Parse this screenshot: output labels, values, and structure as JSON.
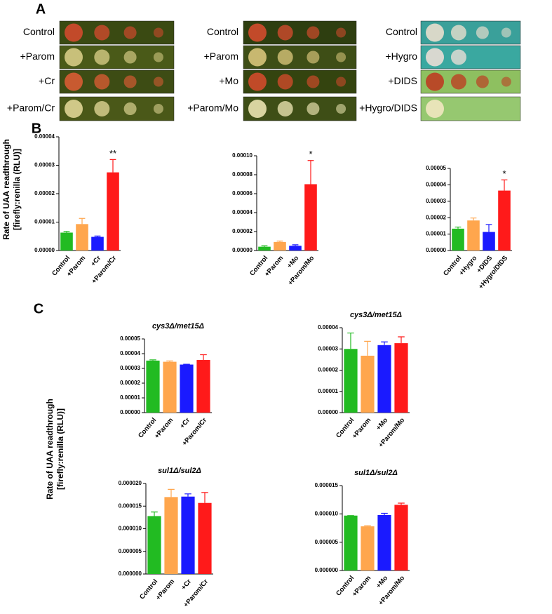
{
  "panel_labels": {
    "a": "A",
    "b": "B",
    "c": "C"
  },
  "plates": [
    {
      "rows": [
        "Control",
        "+Parom",
        "+Cr",
        "+Parom/Cr"
      ]
    },
    {
      "rows": [
        "Control",
        "+Parom",
        "+Mo",
        "+Parom/Mo"
      ]
    },
    {
      "rows": [
        "Control",
        "+Hygro",
        "+DIDS",
        "+Hygro/DIDS"
      ]
    }
  ],
  "ylabel": [
    "Rate of UAA readthrough",
    "[firefly:renilla (RLU)]"
  ],
  "chart_data": [
    {
      "type": "bar",
      "categories": [
        "Control",
        "+Parom",
        "+Cr",
        "+Parom/Cr"
      ],
      "colors": [
        "#22bb22",
        "#ffa64d",
        "#1a1aff",
        "#ff1a1a"
      ],
      "values": [
        6.3e-06,
        9.3e-06,
        4.8e-06,
        2.75e-05
      ],
      "errors": [
        4e-07,
        2e-06,
        3e-07,
        4.5e-06
      ],
      "annotations": [
        null,
        null,
        null,
        "**"
      ],
      "ylim": [
        0,
        4e-05
      ],
      "yticks": [
        {
          "value": 0,
          "label": "0.00000"
        },
        {
          "value": 1e-05,
          "label": "0.00001"
        },
        {
          "value": 2e-05,
          "label": "0.00002"
        },
        {
          "value": 3e-05,
          "label": "0.00003"
        },
        {
          "value": 4e-05,
          "label": "0.00004"
        }
      ]
    },
    {
      "type": "bar",
      "categories": [
        "Control",
        "+Parom",
        "+Mo",
        "+Parom/Mo"
      ],
      "colors": [
        "#22bb22",
        "#ffa64d",
        "#1a1aff",
        "#ff1a1a"
      ],
      "values": [
        4e-06,
        9e-06,
        5e-06,
        7e-05
      ],
      "errors": [
        1e-06,
        1e-06,
        1e-06,
        2.5e-05
      ],
      "annotations": [
        null,
        null,
        null,
        "*"
      ],
      "ylim": [
        0,
        0.0001
      ],
      "yticks": [
        {
          "value": 0,
          "label": "0.00000"
        },
        {
          "value": 2e-05,
          "label": "0.00002"
        },
        {
          "value": 4e-05,
          "label": "0.00004"
        },
        {
          "value": 6e-05,
          "label": "0.00006"
        },
        {
          "value": 8e-05,
          "label": "0.00008"
        },
        {
          "value": 0.0001,
          "label": "0.00010"
        }
      ]
    },
    {
      "type": "bar",
      "categories": [
        "Control",
        "+Hygro",
        "+DIDS",
        "+Hygro/DIDS"
      ],
      "colors": [
        "#22bb22",
        "#ffa64d",
        "#1a1aff",
        "#ff1a1a"
      ],
      "values": [
        1.33e-05,
        1.83e-05,
        1.13e-05,
        3.65e-05
      ],
      "errors": [
        1e-06,
        1.5e-06,
        4.5e-06,
        6.5e-06
      ],
      "annotations": [
        null,
        null,
        null,
        "*"
      ],
      "ylim": [
        0,
        5e-05
      ],
      "yticks": [
        {
          "value": 0,
          "label": "0.00000"
        },
        {
          "value": 1e-05,
          "label": "0.00001"
        },
        {
          "value": 2e-05,
          "label": "0.00002"
        },
        {
          "value": 3e-05,
          "label": "0.00003"
        },
        {
          "value": 4e-05,
          "label": "0.00004"
        },
        {
          "value": 5e-05,
          "label": "0.00005"
        }
      ]
    },
    {
      "type": "bar",
      "title": "cys3Δ/met15Δ",
      "categories": [
        "Control",
        "+Parom",
        "+Cr",
        "+Parom/Cr"
      ],
      "colors": [
        "#22bb22",
        "#ffa64d",
        "#1a1aff",
        "#ff1a1a"
      ],
      "values": [
        3.53e-05,
        3.45e-05,
        3.26e-05,
        3.57e-05
      ],
      "errors": [
        5e-07,
        6e-07,
        2e-07,
        3.6e-06
      ],
      "ylim": [
        0,
        5e-05
      ],
      "yticks": [
        {
          "value": 0,
          "label": "0.00000"
        },
        {
          "value": 1e-05,
          "label": "0.00001"
        },
        {
          "value": 2e-05,
          "label": "0.00002"
        },
        {
          "value": 3e-05,
          "label": "0.00003"
        },
        {
          "value": 4e-05,
          "label": "0.00004"
        },
        {
          "value": 5e-05,
          "label": "0.00005"
        }
      ]
    },
    {
      "type": "bar",
      "title": "cys3Δ/met15Δ",
      "categories": [
        "Control",
        "+Parom",
        "+Mo",
        "+Parom/Mo"
      ],
      "colors": [
        "#22bb22",
        "#ffa64d",
        "#1a1aff",
        "#ff1a1a"
      ],
      "values": [
        3e-05,
        2.68e-05,
        3.18e-05,
        3.27e-05
      ],
      "errors": [
        7.5e-06,
        6.8e-06,
        1.5e-06,
        3e-06
      ],
      "ylim": [
        0,
        4e-05
      ],
      "yticks": [
        {
          "value": 0,
          "label": "0.00000"
        },
        {
          "value": 1e-05,
          "label": "0.00001"
        },
        {
          "value": 2e-05,
          "label": "0.00002"
        },
        {
          "value": 3e-05,
          "label": "0.00003"
        },
        {
          "value": 4e-05,
          "label": "0.00004"
        }
      ]
    },
    {
      "type": "bar",
      "title": "sul1Δ/sul2Δ",
      "categories": [
        "Control",
        "+Parom",
        "+Cr",
        "+Parom/Cr"
      ],
      "colors": [
        "#22bb22",
        "#ffa64d",
        "#1a1aff",
        "#ff1a1a"
      ],
      "values": [
        1.28e-05,
        1.7e-05,
        1.71e-05,
        1.57e-05
      ],
      "errors": [
        9e-07,
        1.7e-06,
        6e-07,
        2.3e-06
      ],
      "ylim": [
        0,
        2e-05
      ],
      "yticks": [
        {
          "value": 0,
          "label": "0.000000"
        },
        {
          "value": 5e-06,
          "label": "0.000005"
        },
        {
          "value": 1e-05,
          "label": "0.000010"
        },
        {
          "value": 1.5e-05,
          "label": "0.000015"
        },
        {
          "value": 2e-05,
          "label": "0.000020"
        }
      ]
    },
    {
      "type": "bar",
      "title": "sul1Δ/sul2Δ",
      "categories": [
        "Control",
        "+Parom",
        "+Mo",
        "+Parom/Mo"
      ],
      "colors": [
        "#22bb22",
        "#ffa64d",
        "#1a1aff",
        "#ff1a1a"
      ],
      "values": [
        9.7e-06,
        7.8e-06,
        9.8e-06,
        1.16e-05
      ],
      "errors": [
        0,
        1e-07,
        3e-07,
        3e-07
      ],
      "ylim": [
        0,
        1.5e-05
      ],
      "yticks": [
        {
          "value": 0,
          "label": "0.000000"
        },
        {
          "value": 5e-06,
          "label": "0.000005"
        },
        {
          "value": 1e-05,
          "label": "0.000010"
        },
        {
          "value": 1.5e-05,
          "label": "0.000015"
        }
      ]
    }
  ]
}
